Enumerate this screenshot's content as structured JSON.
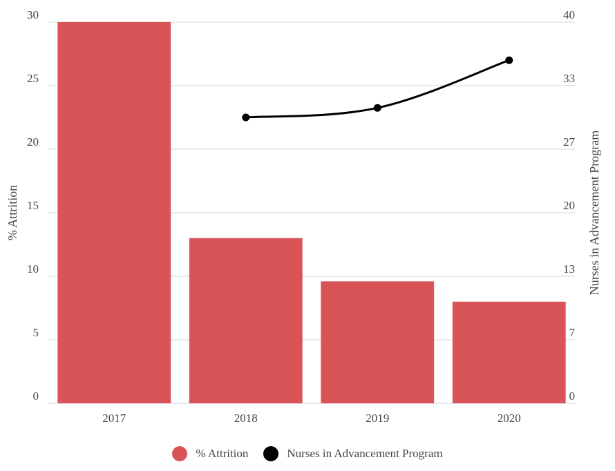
{
  "chart_data": {
    "type": "bar",
    "categories": [
      "2017",
      "2018",
      "2019",
      "2020"
    ],
    "series": [
      {
        "name": "% Attrition",
        "type": "bar",
        "axis": "left",
        "color": "#d95457",
        "values": [
          30,
          13,
          9.6,
          8
        ]
      },
      {
        "name": "Nurses in Advancement Program",
        "type": "line",
        "axis": "right",
        "color": "#000000",
        "values": [
          null,
          30,
          31,
          36
        ]
      }
    ],
    "ylabel": "% Attrition",
    "y2label": "Nurses in Advancement Program",
    "ylim": [
      0,
      30
    ],
    "y2lim": [
      0,
      40
    ],
    "yticks": [
      "0",
      "5",
      "10",
      "15",
      "20",
      "25",
      "30"
    ],
    "y2ticks": [
      "0",
      "7",
      "13",
      "20",
      "27",
      "33",
      "40"
    ],
    "grid": true,
    "legend_position": "bottom"
  }
}
